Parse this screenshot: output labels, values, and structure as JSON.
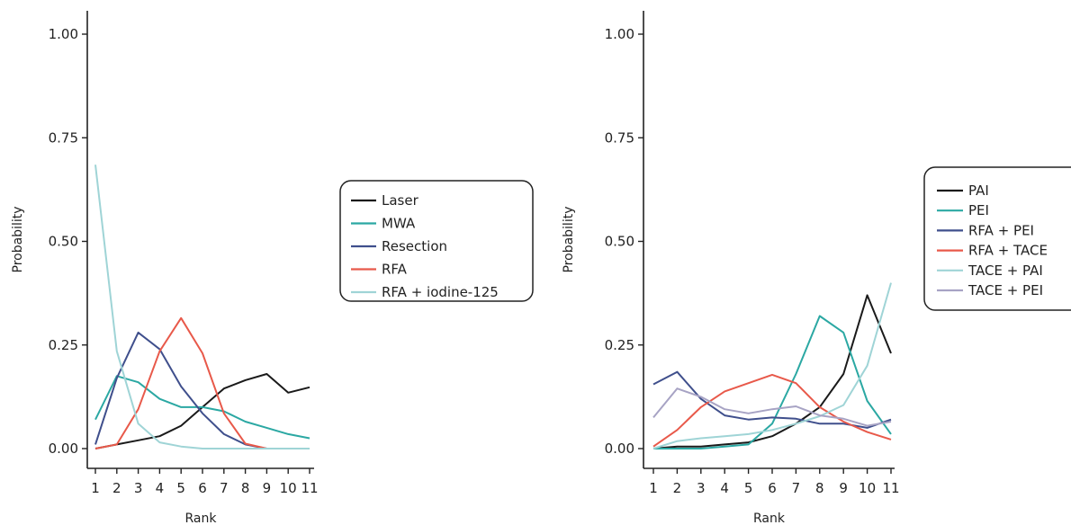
{
  "chart_data": [
    {
      "type": "line",
      "xlabel": "Rank",
      "ylabel": "Probability",
      "x": [
        1,
        2,
        3,
        4,
        5,
        6,
        7,
        8,
        9,
        10,
        11
      ],
      "xtick_labels": [
        "1",
        "2",
        "3",
        "4",
        "5",
        "6",
        "7",
        "8",
        "9",
        "10",
        "11"
      ],
      "ytick_labels": [
        "0.00",
        "0.25",
        "0.50",
        "0.75",
        "1.00"
      ],
      "ylim": [
        0,
        1
      ],
      "legend_placement": "right",
      "series": [
        {
          "name": "Laser",
          "color": "#1a1a1a",
          "values": [
            0.0,
            0.01,
            0.02,
            0.03,
            0.055,
            0.1,
            0.145,
            0.165,
            0.18,
            0.135,
            0.148
          ]
        },
        {
          "name": "MWA",
          "color": "#2ba8a3",
          "values": [
            0.07,
            0.175,
            0.16,
            0.12,
            0.1,
            0.1,
            0.09,
            0.065,
            0.05,
            0.035,
            0.025
          ]
        },
        {
          "name": "Resection",
          "color": "#3f4f8c",
          "values": [
            0.01,
            0.17,
            0.28,
            0.24,
            0.15,
            0.085,
            0.035,
            0.01,
            0.0,
            0.0,
            0.0
          ]
        },
        {
          "name": "RFA",
          "color": "#e8594a",
          "values": [
            0.0,
            0.01,
            0.095,
            0.235,
            0.315,
            0.23,
            0.085,
            0.012,
            0.0,
            0.0,
            0.0
          ]
        },
        {
          "name": "RFA + iodine-125",
          "color": "#9fd4d6",
          "values": [
            0.685,
            0.235,
            0.06,
            0.015,
            0.005,
            0.0,
            0.0,
            0.0,
            0.0,
            0.0,
            0.0
          ]
        }
      ]
    },
    {
      "type": "line",
      "xlabel": "Rank",
      "ylabel": "Probability",
      "x": [
        1,
        2,
        3,
        4,
        5,
        6,
        7,
        8,
        9,
        10,
        11
      ],
      "xtick_labels": [
        "1",
        "2",
        "3",
        "4",
        "5",
        "6",
        "7",
        "8",
        "9",
        "10",
        "11"
      ],
      "ytick_labels": [
        "0.00",
        "0.25",
        "0.50",
        "0.75",
        "1.00"
      ],
      "ylim": [
        0,
        1
      ],
      "legend_placement": "right",
      "series": [
        {
          "name": "PAI",
          "color": "#1a1a1a",
          "values": [
            0.0,
            0.005,
            0.005,
            0.01,
            0.015,
            0.03,
            0.06,
            0.1,
            0.18,
            0.37,
            0.23
          ]
        },
        {
          "name": "PEI",
          "color": "#2ba8a3",
          "values": [
            0.0,
            0.0,
            0.0,
            0.005,
            0.01,
            0.06,
            0.18,
            0.32,
            0.28,
            0.115,
            0.035
          ]
        },
        {
          "name": "RFA + PEI",
          "color": "#3f4f8c",
          "values": [
            0.155,
            0.185,
            0.12,
            0.08,
            0.07,
            0.075,
            0.072,
            0.06,
            0.06,
            0.05,
            0.07
          ]
        },
        {
          "name": "RFA + TACE",
          "color": "#e8594a",
          "values": [
            0.005,
            0.045,
            0.1,
            0.138,
            0.158,
            0.178,
            0.158,
            0.1,
            0.065,
            0.04,
            0.022
          ]
        },
        {
          "name": "TACE + PAI",
          "color": "#9fd4d6",
          "values": [
            0.0,
            0.018,
            0.025,
            0.03,
            0.035,
            0.045,
            0.06,
            0.078,
            0.105,
            0.2,
            0.4
          ]
        },
        {
          "name": "TACE + PEI",
          "color": "#a7a3c4",
          "values": [
            0.075,
            0.145,
            0.125,
            0.095,
            0.085,
            0.095,
            0.102,
            0.08,
            0.072,
            0.055,
            0.065
          ]
        }
      ]
    }
  ]
}
